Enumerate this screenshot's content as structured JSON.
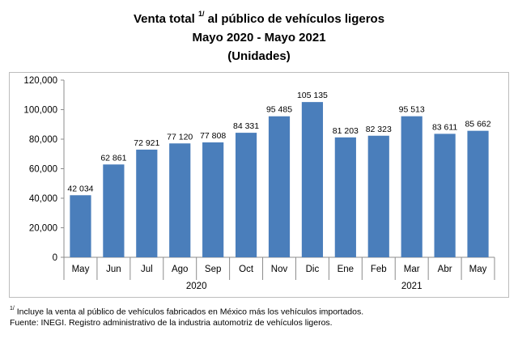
{
  "title": {
    "line1_pre": "Venta total ",
    "line1_sup": "1/",
    "line1_post": " al público de vehículos ligeros",
    "line2": "Mayo 2020 - Mayo 2021",
    "line3": "(Unidades)"
  },
  "chart_data": {
    "type": "bar",
    "categories": [
      "May",
      "Jun",
      "Jul",
      "Ago",
      "Sep",
      "Oct",
      "Nov",
      "Dic",
      "Ene",
      "Feb",
      "Mar",
      "Abr",
      "May"
    ],
    "values": [
      42034,
      62861,
      72921,
      77120,
      77808,
      84331,
      95485,
      105135,
      81203,
      82323,
      95513,
      83611,
      85662
    ],
    "value_labels": [
      "42 034",
      "62 861",
      "72 921",
      "77 120",
      "77 808",
      "84 331",
      "95 485",
      "105 135",
      "81 203",
      "82 323",
      "95 513",
      "83 611",
      "85 662"
    ],
    "year_groups": [
      {
        "label": "2020",
        "start": 0,
        "end": 7
      },
      {
        "label": "2021",
        "start": 8,
        "end": 12
      }
    ],
    "ylim": [
      0,
      120000
    ],
    "yticks": [
      0,
      20000,
      40000,
      60000,
      80000,
      100000,
      120000
    ],
    "ytick_labels": [
      "0",
      "20,000",
      "40,000",
      "60,000",
      "80,000",
      "100,000",
      "120,000"
    ],
    "bar_color": "#4a7ebb",
    "grid": false,
    "legend": "none"
  },
  "footnotes": {
    "note_sup": "1/",
    "note_text": " Incluye la venta al público de vehículos fabricados en México más los vehículos importados.",
    "source": "Fuente: INEGI. Registro administrativo de la industria automotriz de vehículos ligeros."
  }
}
